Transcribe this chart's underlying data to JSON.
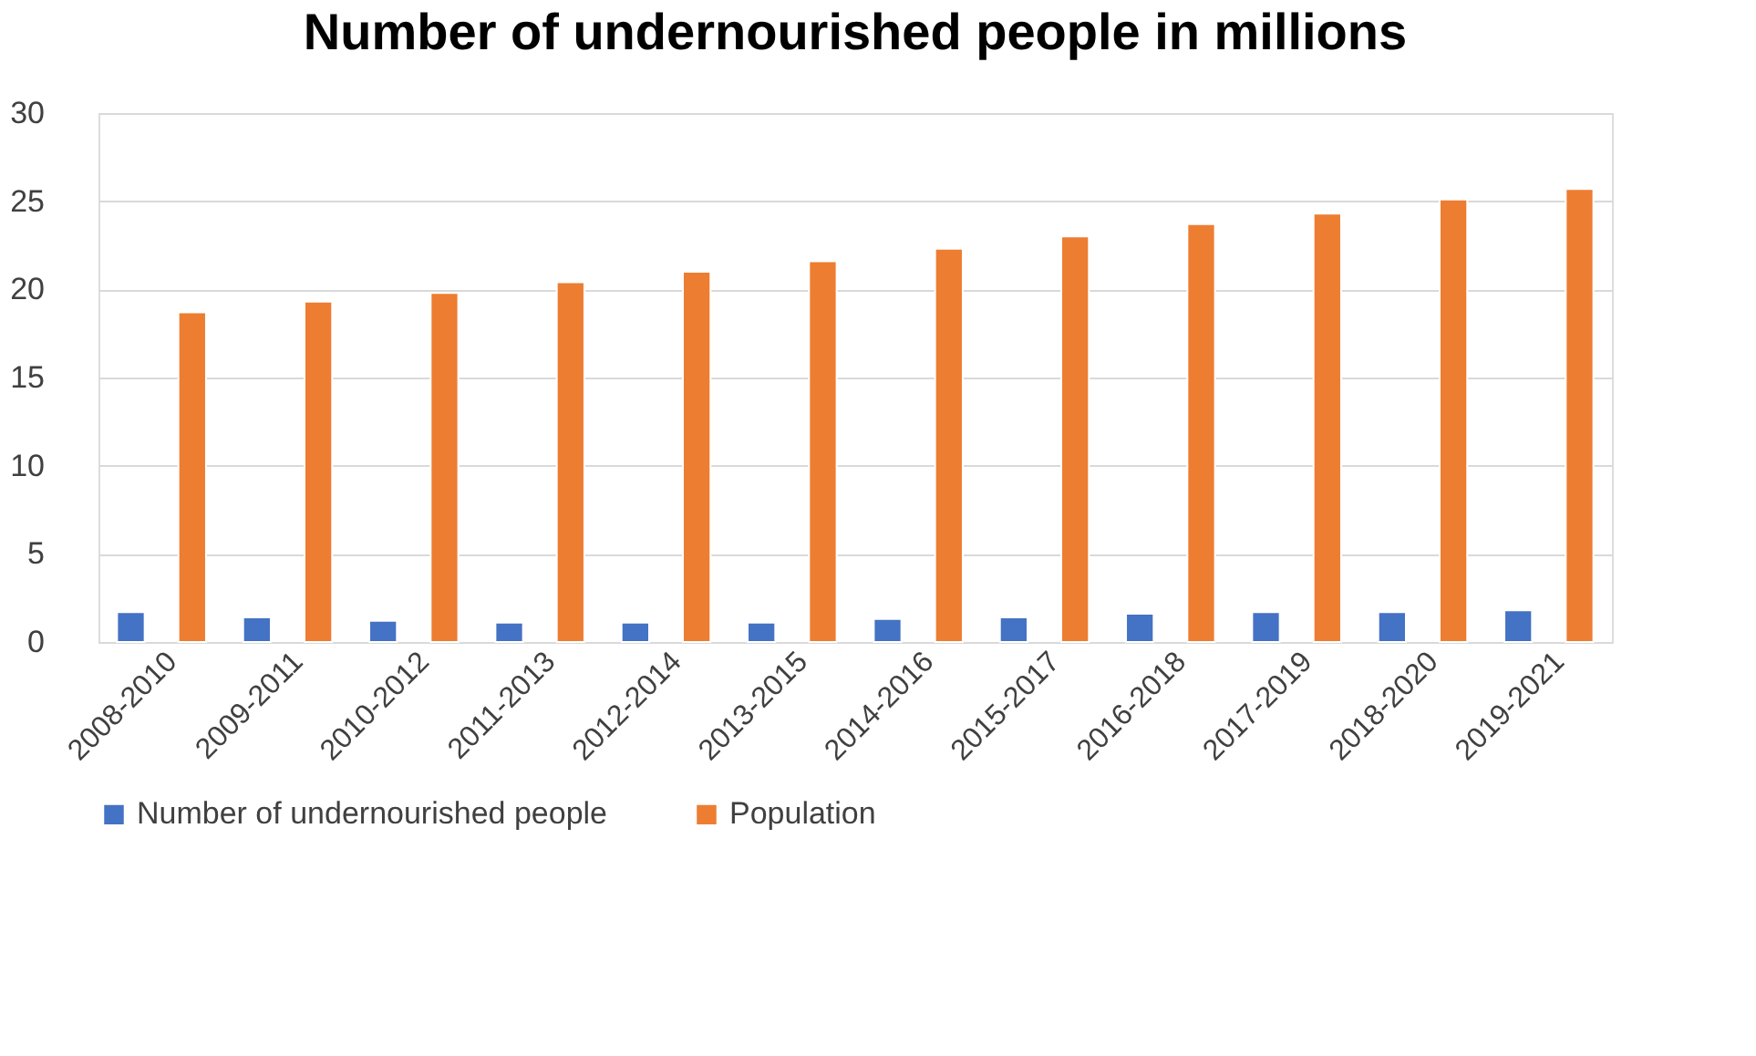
{
  "chart_data": {
    "type": "bar",
    "title": "Number of undernourished people in millions",
    "categories": [
      "2008-2010",
      "2009-2011",
      "2010-2012",
      "2011-2013",
      "2012-2014",
      "2013-2015",
      "2014-2016",
      "2015-2017",
      "2016-2018",
      "2017-2019",
      "2018-2020",
      "2019-2021"
    ],
    "series": [
      {
        "name": "Number of  undernourished people",
        "color": "#4472c4",
        "values": [
          1.7,
          1.4,
          1.2,
          1.1,
          1.1,
          1.1,
          1.3,
          1.4,
          1.6,
          1.7,
          1.7,
          1.8
        ]
      },
      {
        "name": "Population",
        "color": "#ed7d31",
        "values": [
          18.7,
          19.3,
          19.8,
          20.4,
          21.0,
          21.6,
          22.3,
          23.0,
          23.7,
          24.3,
          25.1,
          25.7
        ]
      }
    ],
    "ylim": [
      0,
      30
    ],
    "yticks": [
      0,
      5,
      10,
      15,
      20,
      25,
      30
    ],
    "grid": "y",
    "legend": "bottom"
  }
}
